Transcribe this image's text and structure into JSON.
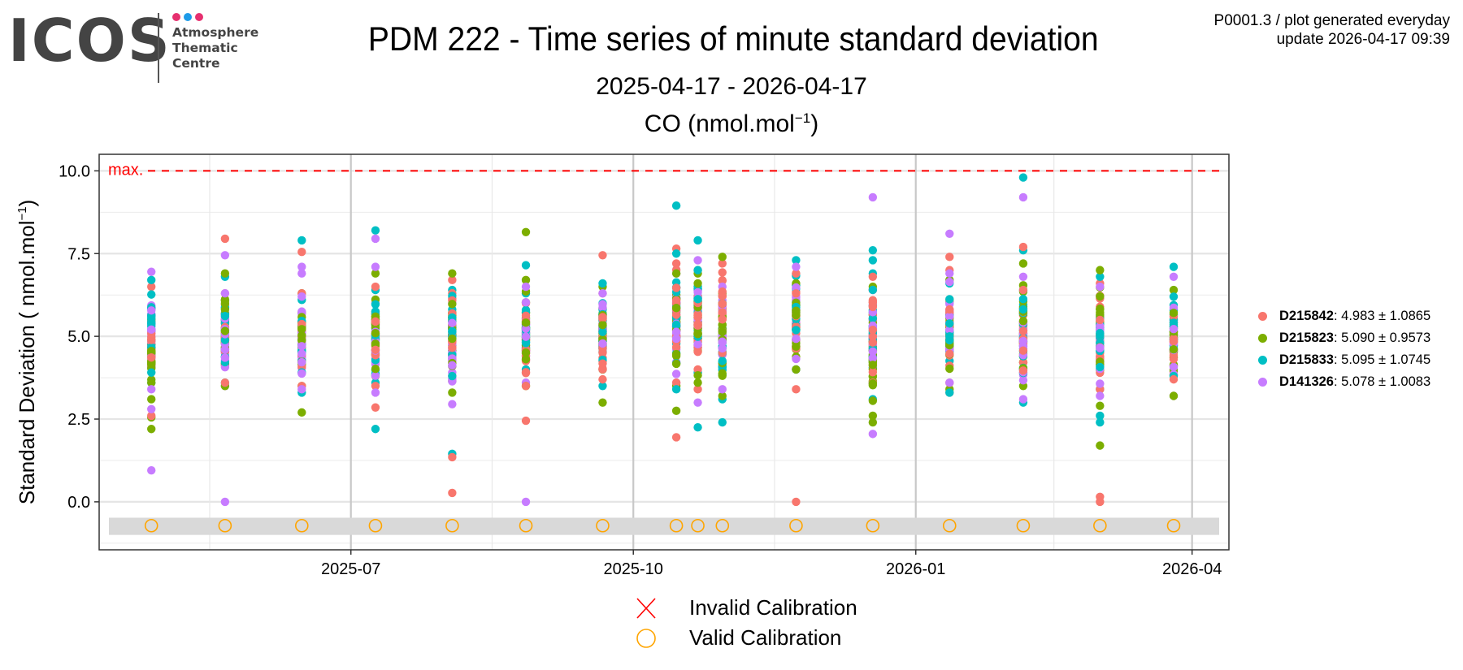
{
  "logo": {
    "wordmark": "ICOS",
    "lines": [
      "Atmosphere",
      "Thematic",
      "Centre"
    ],
    "dot_colors": [
      "#e6306f",
      "#1e9be9",
      "#e6306f"
    ]
  },
  "meta": {
    "line1": "P0001.3 / plot generated everyday",
    "line2": "update  2026-04-17 09:39"
  },
  "header": {
    "title": "PDM 222 - Time series of minute standard deviation",
    "date_range": "2025-04-17 - 2026-04-17",
    "species": "CO (nmol.mol",
    "species_sup": "−1",
    "species_close": ")"
  },
  "chart_data": {
    "type": "scatter",
    "title": "PDM 222 - Time series of minute standard deviation",
    "subtitle": "2025-04-17 - 2026-04-17",
    "panel_title": "CO (nmol.mol−1)",
    "xlabel": "",
    "ylabel": "Standard Deviation ( nmol.mol−1)",
    "ylabel_main": "Standard Deviation ( nmol.mol",
    "ylabel_sup": "−1",
    "ylabel_close": ")",
    "xlim": [
      "2025-04-10",
      "2026-04-13"
    ],
    "ylim": [
      -1.45,
      10.5
    ],
    "x_ticks": [
      {
        "date": "2025-07-01",
        "label": "2025-07"
      },
      {
        "date": "2025-10-01",
        "label": "2025-10"
      },
      {
        "date": "2026-01-01",
        "label": "2026-01"
      },
      {
        "date": "2026-04-01",
        "label": "2026-04"
      }
    ],
    "x_minor_ticks": [
      "2025-05-16",
      "2025-08-16",
      "2025-11-16",
      "2026-02-15"
    ],
    "y_ticks": [
      0.0,
      2.5,
      5.0,
      7.5,
      10.0
    ],
    "y_tick_labels": [
      "0.0",
      "2.5",
      "5.0",
      "7.5",
      "10.0"
    ],
    "grid": true,
    "max_line": {
      "value": 10.0,
      "label": "max.",
      "color": "#ff0000"
    },
    "calibration_band": {
      "y_from": -1.0,
      "y_to": -0.48,
      "color": "#d9d9d9"
    },
    "calibration_marker_y": -0.72,
    "calibrations": [
      {
        "date": "2025-04-27",
        "status": "valid"
      },
      {
        "date": "2025-05-21",
        "status": "valid"
      },
      {
        "date": "2025-06-15",
        "status": "valid"
      },
      {
        "date": "2025-07-09",
        "status": "valid"
      },
      {
        "date": "2025-08-03",
        "status": "valid"
      },
      {
        "date": "2025-08-27",
        "status": "valid"
      },
      {
        "date": "2025-09-21",
        "status": "valid"
      },
      {
        "date": "2025-10-15",
        "status": "valid"
      },
      {
        "date": "2025-10-22",
        "status": "valid"
      },
      {
        "date": "2025-10-30",
        "status": "valid"
      },
      {
        "date": "2025-11-23",
        "status": "valid"
      },
      {
        "date": "2025-12-18",
        "status": "valid"
      },
      {
        "date": "2026-01-12",
        "status": "valid"
      },
      {
        "date": "2026-02-05",
        "status": "valid"
      },
      {
        "date": "2026-03-02",
        "status": "valid"
      },
      {
        "date": "2026-03-26",
        "status": "valid"
      }
    ],
    "series": [
      {
        "name": "D215842",
        "stats": ": 4.983 ± 1.0865",
        "color": "#f8766d",
        "groups": [
          {
            "date": "2025-04-27",
            "min": 2.6,
            "max": 6.5,
            "extra": []
          },
          {
            "date": "2025-05-21",
            "min": 3.6,
            "max": 6.3,
            "extra": [
              7.95
            ]
          },
          {
            "date": "2025-06-15",
            "min": 3.5,
            "max": 6.3,
            "extra": [
              7.55
            ]
          },
          {
            "date": "2025-07-09",
            "min": 3.5,
            "max": 6.5,
            "extra": [
              2.85
            ]
          },
          {
            "date": "2025-08-03",
            "min": 3.8,
            "max": 6.7,
            "extra": [
              1.35,
              0.27
            ]
          },
          {
            "date": "2025-08-27",
            "min": 3.5,
            "max": 6.0,
            "extra": [
              2.45
            ]
          },
          {
            "date": "2025-09-21",
            "min": 3.7,
            "max": 6.3,
            "extra": [
              7.45
            ]
          },
          {
            "date": "2025-10-15",
            "min": 3.6,
            "max": 7.2,
            "extra": [
              7.65,
              1.95
            ]
          },
          {
            "date": "2025-10-22",
            "min": 4.0,
            "max": 7.0,
            "extra": [
              3.4
            ]
          },
          {
            "date": "2025-10-30",
            "min": 4.5,
            "max": 7.2,
            "extra": []
          },
          {
            "date": "2025-11-23",
            "min": 3.4,
            "max": 6.9,
            "extra": [
              0.0
            ]
          },
          {
            "date": "2025-12-18",
            "min": 3.6,
            "max": 6.8,
            "extra": []
          },
          {
            "date": "2026-01-12",
            "min": 3.3,
            "max": 7.0,
            "extra": [
              7.4
            ]
          },
          {
            "date": "2026-02-05",
            "min": 3.9,
            "max": 6.4,
            "extra": [
              7.7
            ]
          },
          {
            "date": "2026-03-02",
            "min": 3.4,
            "max": 6.6,
            "extra": [
              0.15,
              0.0
            ]
          },
          {
            "date": "2026-03-26",
            "min": 3.7,
            "max": 5.6,
            "extra": []
          }
        ]
      },
      {
        "name": "D215823",
        "stats": ": 5.090 ± 0.9573",
        "color": "#7cae00",
        "groups": [
          {
            "date": "2025-04-27",
            "min": 3.1,
            "max": 5.5,
            "extra": [
              2.55,
              2.2
            ]
          },
          {
            "date": "2025-05-21",
            "min": 3.5,
            "max": 6.9,
            "extra": []
          },
          {
            "date": "2025-06-15",
            "min": 3.5,
            "max": 6.3,
            "extra": [
              2.7
            ]
          },
          {
            "date": "2025-07-09",
            "min": 3.8,
            "max": 6.9,
            "extra": []
          },
          {
            "date": "2025-08-03",
            "min": 3.3,
            "max": 6.9,
            "extra": []
          },
          {
            "date": "2025-08-27",
            "min": 3.5,
            "max": 6.7,
            "extra": [
              8.15
            ]
          },
          {
            "date": "2025-09-21",
            "min": 4.0,
            "max": 6.5,
            "extra": [
              3.0
            ]
          },
          {
            "date": "2025-10-15",
            "min": 3.5,
            "max": 6.9,
            "extra": [
              2.75
            ]
          },
          {
            "date": "2025-10-22",
            "min": 3.6,
            "max": 6.9,
            "extra": []
          },
          {
            "date": "2025-10-30",
            "min": 3.2,
            "max": 7.4,
            "extra": []
          },
          {
            "date": "2025-11-23",
            "min": 4.0,
            "max": 6.6,
            "extra": []
          },
          {
            "date": "2025-12-18",
            "min": 2.4,
            "max": 6.5,
            "extra": [
              2.6
            ]
          },
          {
            "date": "2026-01-12",
            "min": 3.4,
            "max": 6.7,
            "extra": []
          },
          {
            "date": "2026-02-05",
            "min": 3.5,
            "max": 7.2,
            "extra": []
          },
          {
            "date": "2026-03-02",
            "min": 2.9,
            "max": 7.0,
            "extra": [
              1.7
            ]
          },
          {
            "date": "2026-03-26",
            "min": 3.2,
            "max": 6.4,
            "extra": []
          }
        ]
      },
      {
        "name": "D215833",
        "stats": ": 5.095 ± 1.0745",
        "color": "#00bfc4",
        "groups": [
          {
            "date": "2025-04-27",
            "min": 3.6,
            "max": 6.7,
            "extra": []
          },
          {
            "date": "2025-05-21",
            "min": 3.6,
            "max": 6.8,
            "extra": []
          },
          {
            "date": "2025-06-15",
            "min": 3.3,
            "max": 6.1,
            "extra": [
              7.9
            ]
          },
          {
            "date": "2025-07-09",
            "min": 3.6,
            "max": 6.4,
            "extra": [
              8.2,
              2.2
            ]
          },
          {
            "date": "2025-08-03",
            "min": 3.8,
            "max": 6.4,
            "extra": [
              1.45
            ]
          },
          {
            "date": "2025-08-27",
            "min": 4.0,
            "max": 6.3,
            "extra": [
              7.15
            ]
          },
          {
            "date": "2025-09-21",
            "min": 3.5,
            "max": 6.6,
            "extra": []
          },
          {
            "date": "2025-10-15",
            "min": 3.4,
            "max": 7.5,
            "extra": [
              8.95
            ]
          },
          {
            "date": "2025-10-22",
            "min": 3.9,
            "max": 7.0,
            "extra": [
              7.9,
              2.25
            ]
          },
          {
            "date": "2025-10-30",
            "min": 3.1,
            "max": 6.0,
            "extra": [
              2.4
            ]
          },
          {
            "date": "2025-11-23",
            "min": 4.0,
            "max": 7.3,
            "extra": []
          },
          {
            "date": "2025-12-18",
            "min": 3.1,
            "max": 6.9,
            "extra": [
              7.6,
              7.3
            ]
          },
          {
            "date": "2026-01-12",
            "min": 3.3,
            "max": 6.6,
            "extra": []
          },
          {
            "date": "2026-02-05",
            "min": 3.0,
            "max": 6.4,
            "extra": [
              9.8,
              7.6
            ]
          },
          {
            "date": "2026-03-02",
            "min": 2.4,
            "max": 6.8,
            "extra": [
              2.6
            ]
          },
          {
            "date": "2026-03-26",
            "min": 3.8,
            "max": 7.1,
            "extra": []
          }
        ]
      },
      {
        "name": "D141326",
        "stats": ": 5.078 ± 1.0083",
        "color": "#c77cff",
        "groups": [
          {
            "date": "2025-04-27",
            "min": 3.4,
            "max": 6.95,
            "extra": [
              2.8,
              0.95
            ]
          },
          {
            "date": "2025-05-21",
            "min": 3.5,
            "max": 6.3,
            "extra": [
              7.45,
              0.0
            ]
          },
          {
            "date": "2025-06-15",
            "min": 3.4,
            "max": 6.2,
            "extra": [
              7.1,
              6.9
            ]
          },
          {
            "date": "2025-07-09",
            "min": 3.3,
            "max": 6.0,
            "extra": [
              7.95,
              7.1
            ]
          },
          {
            "date": "2025-08-03",
            "min": 2.95,
            "max": 6.0,
            "extra": []
          },
          {
            "date": "2025-08-27",
            "min": 3.6,
            "max": 6.5,
            "extra": [
              0.0
            ]
          },
          {
            "date": "2025-09-21",
            "min": 4.0,
            "max": 6.3,
            "extra": []
          },
          {
            "date": "2025-10-15",
            "min": 3.6,
            "max": 6.9,
            "extra": []
          },
          {
            "date": "2025-10-22",
            "min": 3.9,
            "max": 7.3,
            "extra": [
              3.0
            ]
          },
          {
            "date": "2025-10-30",
            "min": 3.4,
            "max": 6.5,
            "extra": []
          },
          {
            "date": "2025-11-23",
            "min": 4.0,
            "max": 7.1,
            "extra": []
          },
          {
            "date": "2025-12-18",
            "min": 3.6,
            "max": 6.4,
            "extra": [
              9.2,
              2.05
            ]
          },
          {
            "date": "2026-01-12",
            "min": 3.6,
            "max": 6.9,
            "extra": [
              8.1
            ]
          },
          {
            "date": "2026-02-05",
            "min": 3.1,
            "max": 6.8,
            "extra": [
              9.2
            ]
          },
          {
            "date": "2026-03-02",
            "min": 3.2,
            "max": 6.5,
            "extra": []
          },
          {
            "date": "2026-03-26",
            "min": 3.2,
            "max": 6.8,
            "extra": []
          }
        ]
      }
    ],
    "legend_series_position": "right",
    "legend_calibration_position": "bottom",
    "legend_calibration": [
      {
        "label": "Invalid Calibration",
        "symbol": "x",
        "color": "#ff0000"
      },
      {
        "label": "Valid Calibration",
        "symbol": "circle",
        "color": "#ffa500"
      }
    ]
  }
}
